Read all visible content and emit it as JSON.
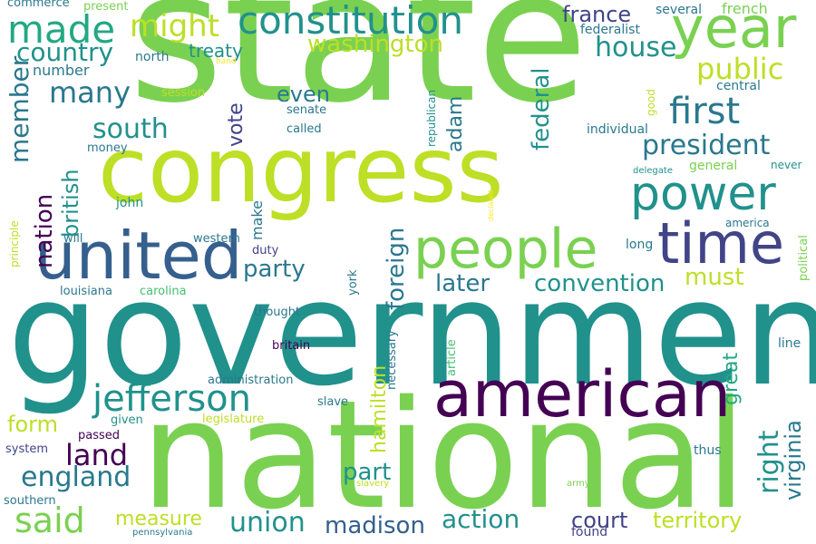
{
  "palette": {
    "darkpurple": "#440154",
    "purple": "#482475",
    "indigo": "#414487",
    "blue": "#355f8d",
    "steel": "#2a788e",
    "teal": "#21918c",
    "green": "#22a884",
    "lgreen": "#44bf70",
    "lime": "#7ad151",
    "ylime": "#bddf26",
    "yellow": "#fde725"
  },
  "words": [
    {
      "text": "state",
      "color": "lime"
    },
    {
      "text": "government",
      "color": "teal"
    },
    {
      "text": "national",
      "color": "lime"
    },
    {
      "text": "congress",
      "color": "ylime"
    },
    {
      "text": "united",
      "color": "blue"
    },
    {
      "text": "american",
      "color": "darkpurple"
    },
    {
      "text": "people",
      "color": "lime"
    },
    {
      "text": "year",
      "color": "lime"
    },
    {
      "text": "time",
      "color": "indigo"
    },
    {
      "text": "power",
      "color": "teal"
    },
    {
      "text": "constitution",
      "color": "teal"
    },
    {
      "text": "jefferson",
      "color": "teal"
    },
    {
      "text": "made",
      "color": "green"
    },
    {
      "text": "first",
      "color": "steel"
    },
    {
      "text": "president",
      "color": "steel"
    },
    {
      "text": "might",
      "color": "ylime"
    },
    {
      "text": "said",
      "color": "lime"
    },
    {
      "text": "union",
      "color": "teal"
    },
    {
      "text": "land",
      "color": "darkpurple"
    },
    {
      "text": "england",
      "color": "steel"
    },
    {
      "text": "many",
      "color": "steel"
    },
    {
      "text": "south",
      "color": "teal"
    },
    {
      "text": "country",
      "color": "teal"
    },
    {
      "text": "party",
      "color": "steel"
    },
    {
      "text": "public",
      "color": "ylime"
    },
    {
      "text": "france",
      "color": "indigo"
    },
    {
      "text": "house",
      "color": "teal"
    },
    {
      "text": "washington",
      "color": "ylime"
    },
    {
      "text": "convention",
      "color": "teal"
    },
    {
      "text": "later",
      "color": "steel"
    },
    {
      "text": "must",
      "color": "ylime"
    },
    {
      "text": "madison",
      "color": "blue"
    },
    {
      "text": "action",
      "color": "teal"
    },
    {
      "text": "court",
      "color": "indigo"
    },
    {
      "text": "territory",
      "color": "ylime"
    },
    {
      "text": "measure",
      "color": "ylime"
    },
    {
      "text": "part",
      "color": "teal"
    },
    {
      "text": "form",
      "color": "ylime"
    },
    {
      "text": "even",
      "color": "steel"
    },
    {
      "text": "treaty",
      "color": "teal"
    },
    {
      "text": "number",
      "color": "steel"
    },
    {
      "text": "north",
      "color": "steel"
    },
    {
      "text": "several",
      "color": "steel"
    },
    {
      "text": "french",
      "color": "lime"
    },
    {
      "text": "federalist",
      "color": "steel"
    },
    {
      "text": "central",
      "color": "steel"
    },
    {
      "text": "individual",
      "color": "steel"
    },
    {
      "text": "general",
      "color": "lime"
    },
    {
      "text": "never",
      "color": "teal"
    },
    {
      "text": "delegate",
      "color": "teal"
    },
    {
      "text": "america",
      "color": "steel"
    },
    {
      "text": "long",
      "color": "steel"
    },
    {
      "text": "line",
      "color": "steel"
    },
    {
      "text": "thus",
      "color": "steel"
    },
    {
      "text": "member",
      "color": "steel"
    },
    {
      "text": "nation",
      "color": "darkpurple"
    },
    {
      "text": "british",
      "color": "teal"
    },
    {
      "text": "vote",
      "color": "indigo"
    },
    {
      "text": "foreign",
      "color": "steel"
    },
    {
      "text": "federal",
      "color": "teal"
    },
    {
      "text": "adam",
      "color": "steel"
    },
    {
      "text": "hamilton",
      "color": "ylime"
    },
    {
      "text": "right",
      "color": "teal"
    },
    {
      "text": "great",
      "color": "green"
    },
    {
      "text": "virginia",
      "color": "steel"
    },
    {
      "text": "make",
      "color": "steel"
    },
    {
      "text": "republican",
      "color": "teal"
    },
    {
      "text": "necessary",
      "color": "steel"
    },
    {
      "text": "article",
      "color": "lgreen"
    },
    {
      "text": "good",
      "color": "ylime"
    },
    {
      "text": "declared",
      "color": "yellow"
    },
    {
      "text": "political",
      "color": "lime"
    },
    {
      "text": "principle",
      "color": "ylime"
    },
    {
      "text": "york",
      "color": "steel"
    },
    {
      "text": "commerce",
      "color": "steel"
    },
    {
      "text": "present",
      "color": "lime"
    },
    {
      "text": "hand",
      "color": "yellow"
    },
    {
      "text": "session",
      "color": "ylime"
    },
    {
      "text": "senate",
      "color": "steel"
    },
    {
      "text": "called",
      "color": "steel"
    },
    {
      "text": "money",
      "color": "steel"
    },
    {
      "text": "john",
      "color": "teal"
    },
    {
      "text": "will",
      "color": "steel"
    },
    {
      "text": "western",
      "color": "steel"
    },
    {
      "text": "duty",
      "color": "indigo"
    },
    {
      "text": "louisiana",
      "color": "steel"
    },
    {
      "text": "carolina",
      "color": "lgreen"
    },
    {
      "text": "thought",
      "color": "steel"
    },
    {
      "text": "britain",
      "color": "darkpurple"
    },
    {
      "text": "administration",
      "color": "steel"
    },
    {
      "text": "slave",
      "color": "steel"
    },
    {
      "text": "given",
      "color": "teal"
    },
    {
      "text": "legislature",
      "color": "ylime"
    },
    {
      "text": "passed",
      "color": "darkpurple"
    },
    {
      "text": "system",
      "color": "indigo"
    },
    {
      "text": "southern",
      "color": "steel"
    },
    {
      "text": "slavery",
      "color": "ylime"
    },
    {
      "text": "army",
      "color": "lime"
    },
    {
      "text": "pennsylvania",
      "color": "steel"
    },
    {
      "text": "found",
      "color": "indigo"
    }
  ]
}
